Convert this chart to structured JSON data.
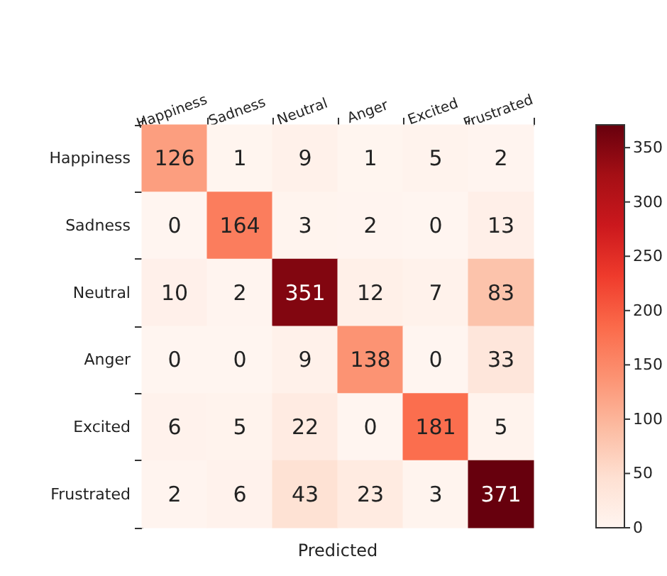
{
  "chart_data": {
    "type": "heatmap",
    "xlabel": "Predicted",
    "categories": [
      "Happiness",
      "Sadness",
      "Neutral",
      "Anger",
      "Excited",
      "Frustrated"
    ],
    "y_categories": [
      "Happiness",
      "Sadness",
      "Neutral",
      "Anger",
      "Excited",
      "Frustrated"
    ],
    "cells": [
      [
        126,
        1,
        9,
        1,
        5,
        2
      ],
      [
        0,
        164,
        3,
        2,
        0,
        13
      ],
      [
        10,
        2,
        351,
        12,
        7,
        83
      ],
      [
        0,
        0,
        9,
        138,
        0,
        33
      ],
      [
        6,
        5,
        22,
        0,
        181,
        5
      ],
      [
        2,
        6,
        43,
        23,
        3,
        371
      ]
    ],
    "data_labels": true,
    "clim": [
      0,
      371
    ],
    "cticks": [
      0,
      50,
      100,
      150,
      200,
      250,
      300,
      350
    ]
  }
}
